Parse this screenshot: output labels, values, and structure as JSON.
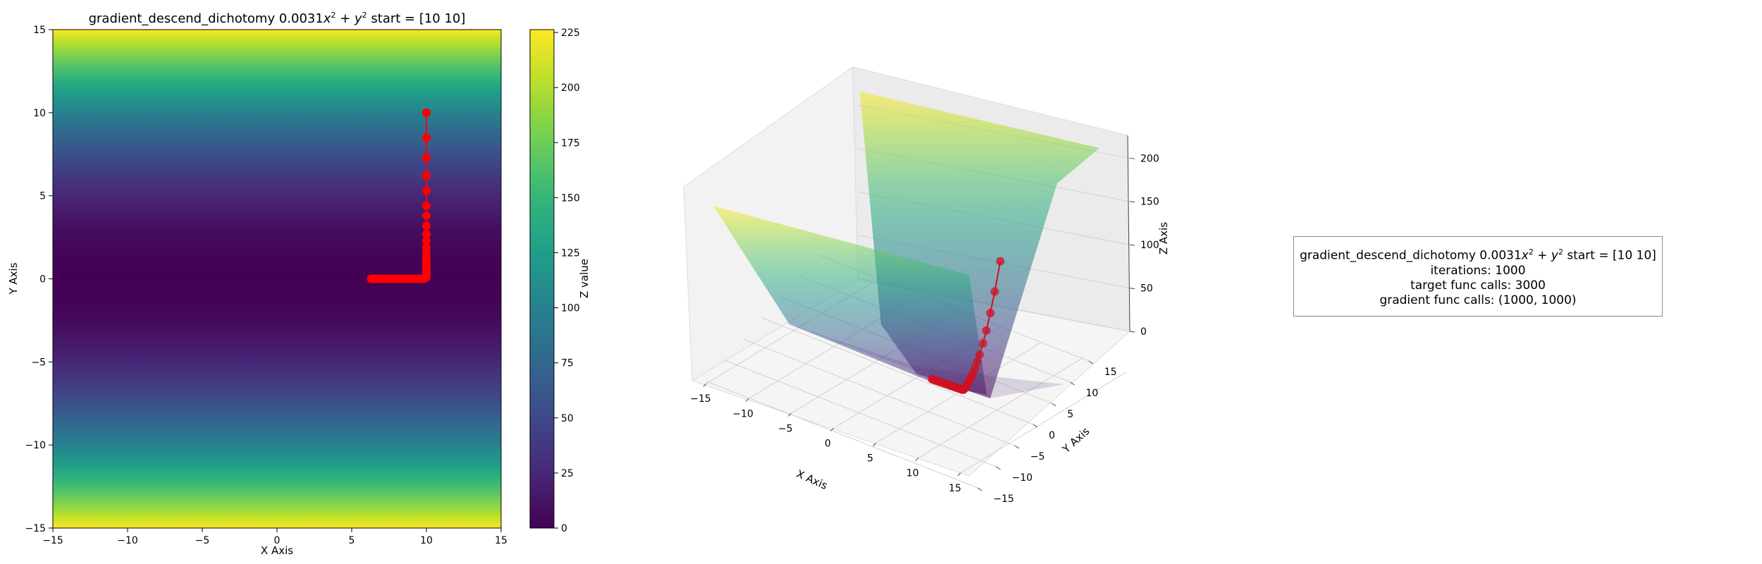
{
  "figure": {
    "title_prefix": "gradient_descend_dichotomy 0.0031",
    "title_suffix": " start = [10 10]"
  },
  "info_box": {
    "title_prefix": "gradient_descend_dichotomy 0.0031",
    "title_suffix": " start = [10 10]",
    "iterations": "iterations: 1000",
    "target_calls": "target func calls: 3000",
    "gradient_calls": "gradient func calls: (1000, 1000)"
  },
  "colors": {
    "path": "#ff0000",
    "path_3d": "#d01020",
    "viridis": [
      "#440154",
      "#482878",
      "#3e4989",
      "#31688e",
      "#26828e",
      "#1f9e89",
      "#35b779",
      "#6ece58",
      "#b5de2b",
      "#fde725"
    ]
  },
  "chart_data": [
    {
      "type": "heatmap",
      "function": {
        "a": 0.0031,
        "b": 1
      },
      "xlabel": "X Axis",
      "ylabel": "Y Axis",
      "xlim": [
        -15,
        15
      ],
      "ylim": [
        -15,
        15
      ],
      "xticks": [
        -15,
        -10,
        -5,
        0,
        5,
        10,
        15
      ],
      "yticks": [
        -15,
        -10,
        -5,
        0,
        5,
        10,
        15
      ],
      "colorbar": {
        "label": "Z value",
        "range": [
          0,
          226.3
        ],
        "ticks": [
          0,
          25,
          50,
          75,
          100,
          125,
          150,
          175,
          200,
          225
        ]
      },
      "path": {
        "x": [
          10,
          10,
          10,
          10,
          10,
          10,
          10,
          10,
          10,
          10,
          10,
          10,
          10,
          10,
          10,
          10,
          10,
          10,
          10,
          9.9,
          9.8,
          9.6,
          9.4,
          9.2,
          9.0,
          8.8,
          8.6,
          8.4,
          8.2,
          8.0,
          7.8,
          7.6,
          7.4,
          7.2,
          7.0,
          6.8,
          6.6,
          6.4,
          6.3
        ],
        "y": [
          10,
          8.5,
          7.3,
          6.2,
          5.3,
          4.4,
          3.8,
          3.2,
          2.7,
          2.3,
          1.9,
          1.6,
          1.3,
          1.0,
          0.8,
          0.6,
          0.4,
          0.25,
          0.1,
          0.02,
          0,
          0,
          0,
          0,
          0,
          0,
          0,
          0,
          0,
          0,
          0,
          0,
          0,
          0,
          0,
          0,
          0,
          0,
          0
        ]
      }
    },
    {
      "type": "surface3d",
      "xlabel": "X Axis",
      "ylabel": "Y Axis",
      "zlabel": "Z Axis",
      "xticks": [
        -15,
        -10,
        -5,
        0,
        5,
        10,
        15
      ],
      "yticks": [
        -15,
        -10,
        -5,
        0,
        5,
        10,
        15
      ],
      "zticks": [
        0,
        50,
        100,
        150,
        200
      ],
      "zlim": [
        0,
        226.3
      ]
    }
  ]
}
